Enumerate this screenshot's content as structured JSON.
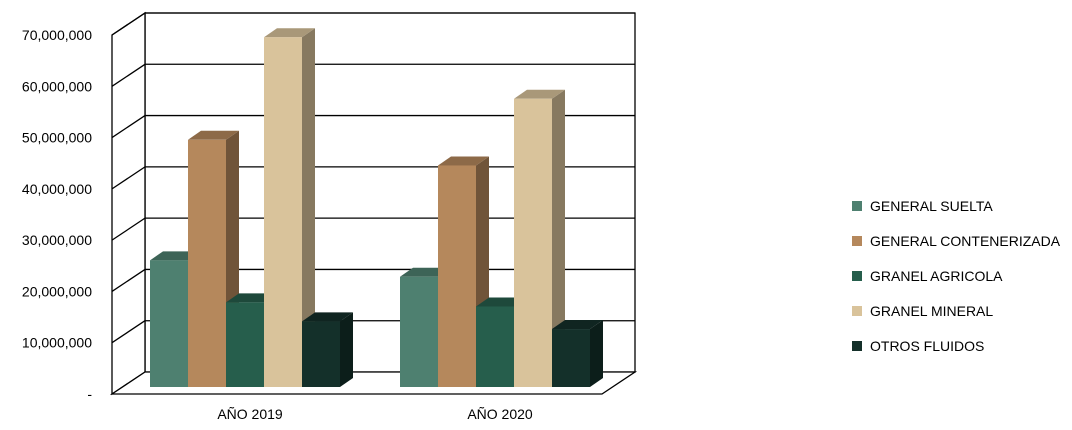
{
  "chart_data": {
    "type": "bar",
    "categories": [
      "AÑO 2019",
      "AÑO 2020"
    ],
    "series": [
      {
        "name": "GENERAL SUELTA",
        "color": "#4e8070",
        "values": [
          24700000,
          21500000
        ]
      },
      {
        "name": "GENERAL CONTENERIZADA",
        "color": "#b5885c",
        "values": [
          48200000,
          43200000
        ]
      },
      {
        "name": "GRANEL AGRICOLA",
        "color": "#265e4c",
        "values": [
          16500000,
          15700000
        ]
      },
      {
        "name": "GRANEL MINERAL",
        "color": "#d9c39b",
        "values": [
          68200000,
          56200000
        ]
      },
      {
        "name": "OTROS FLUIDOS",
        "color": "#14302a",
        "values": [
          12800000,
          11300000
        ]
      }
    ],
    "y_ticks": [
      "-",
      "10,000,000",
      "20,000,000",
      "30,000,000",
      "40,000,000",
      "50,000,000",
      "60,000,000",
      "70,000,000"
    ],
    "ylim": [
      0,
      70000000
    ],
    "grid": true,
    "legend_position": "right"
  }
}
